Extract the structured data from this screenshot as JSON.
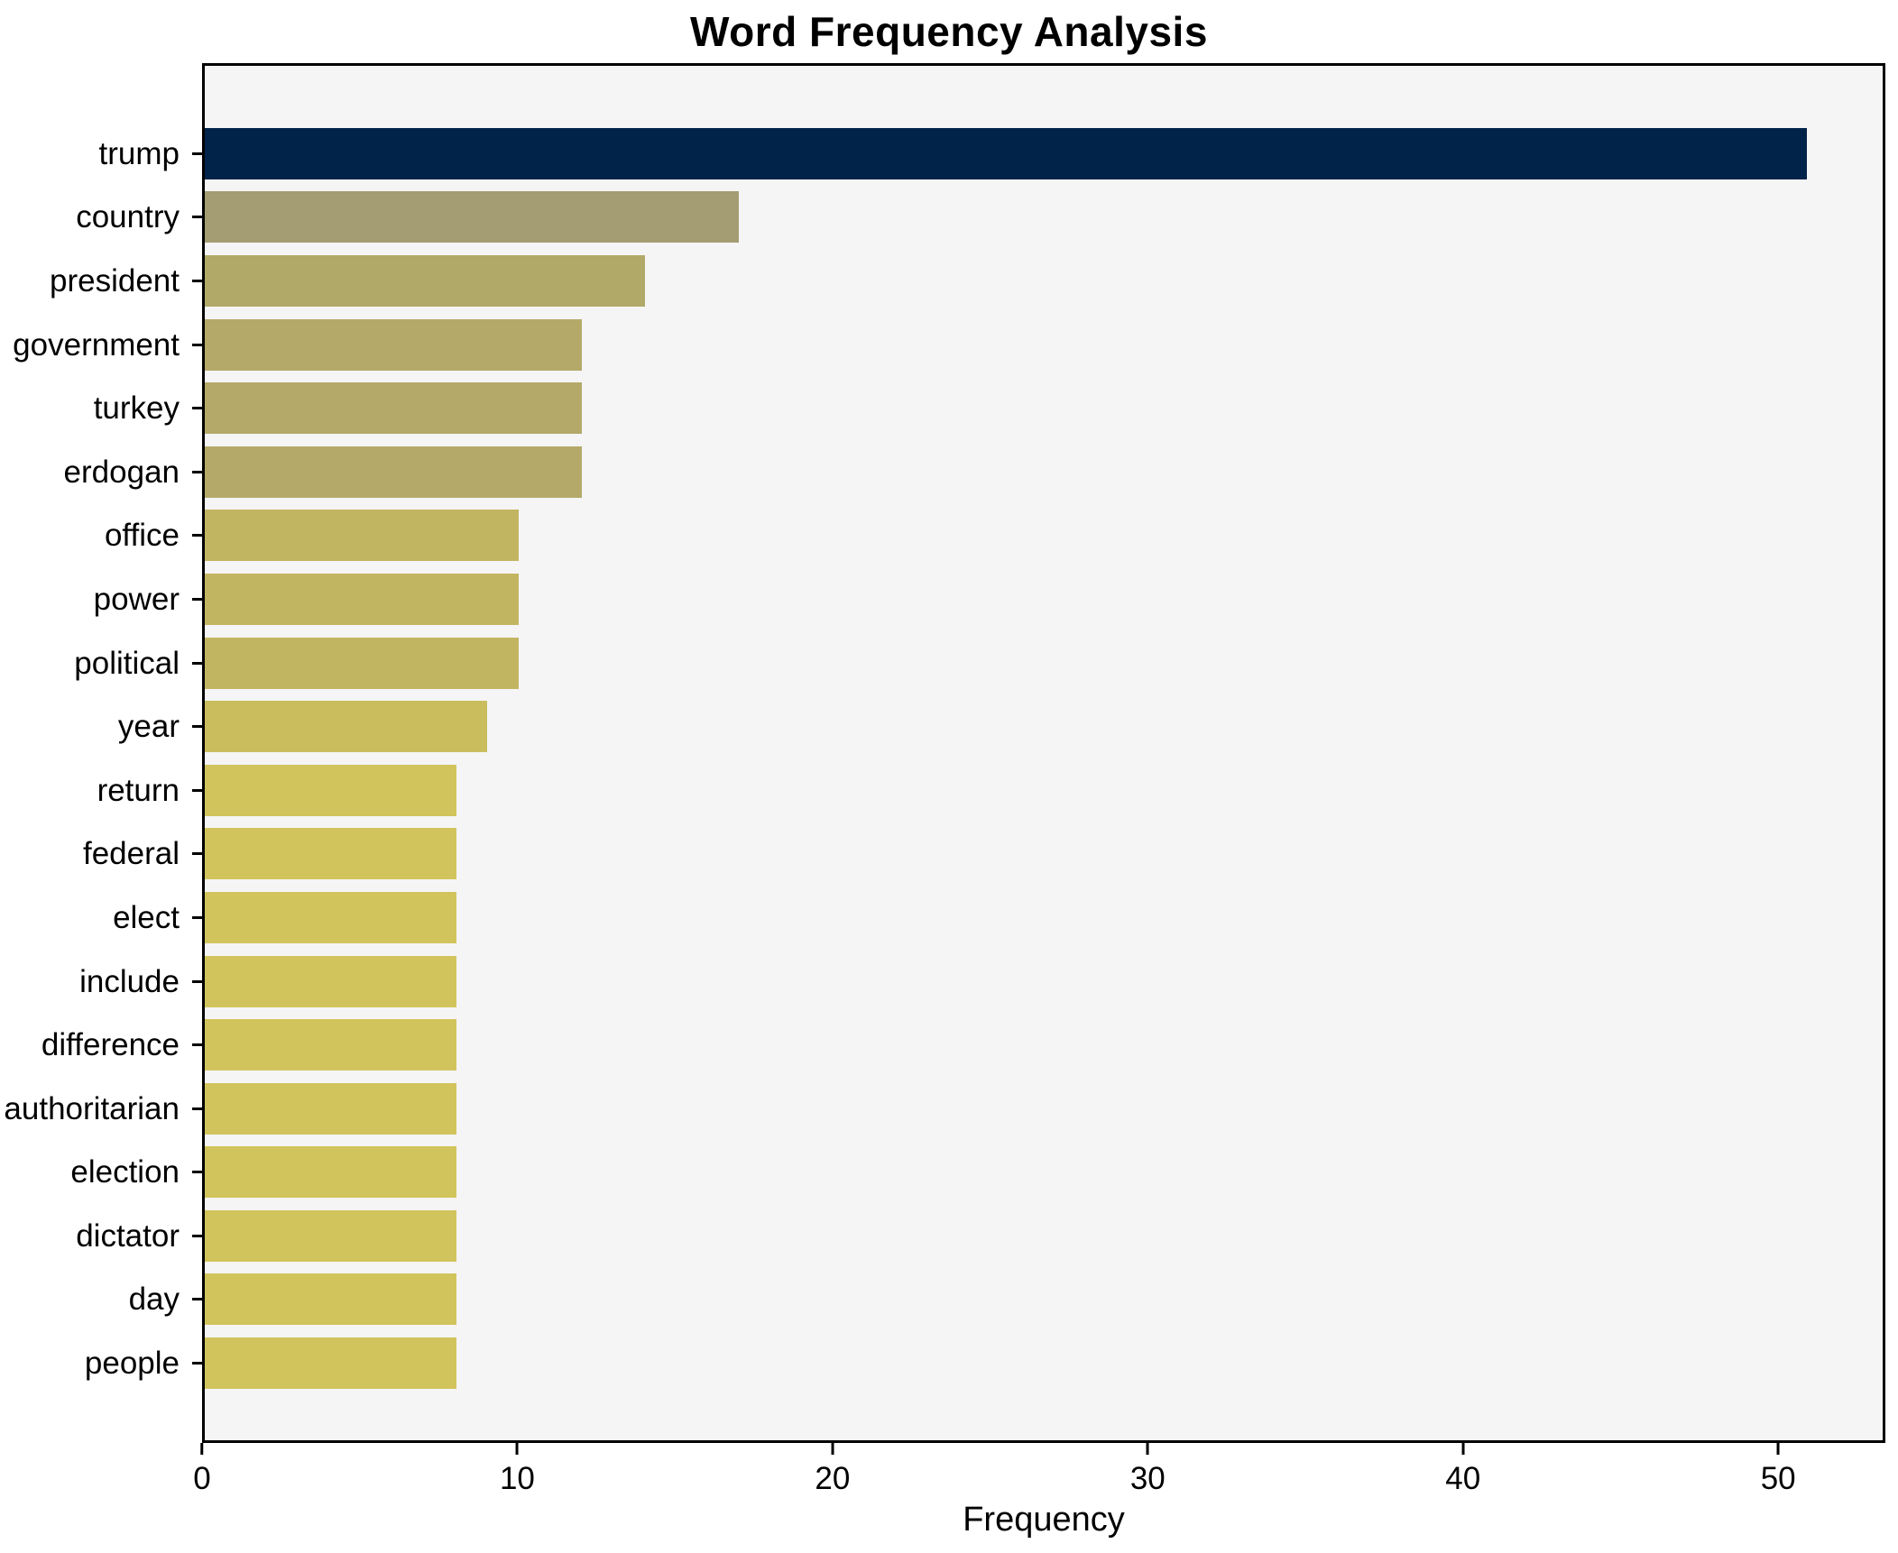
{
  "title": "Word Frequency Analysis",
  "colors": {
    "figure_background": "#ffffff",
    "plot_background": "#f5f5f6",
    "spine": "#000000",
    "max_bar": "#022349",
    "base_bar": "#d1c45c"
  },
  "chart_data": {
    "type": "bar",
    "orientation": "horizontal",
    "title": "Word Frequency Analysis",
    "xlabel": "Frequency",
    "ylabel": "",
    "grid": false,
    "legend": false,
    "xlim": [
      0,
      53.4
    ],
    "xticks": [
      0,
      10,
      20,
      30,
      40,
      50
    ],
    "categories": [
      "trump",
      "country",
      "president",
      "government",
      "turkey",
      "erdogan",
      "office",
      "power",
      "political",
      "year",
      "return",
      "federal",
      "elect",
      "include",
      "difference",
      "authoritarian",
      "election",
      "dictator",
      "day",
      "people"
    ],
    "values": [
      51,
      17,
      14,
      12,
      12,
      12,
      10,
      10,
      10,
      9,
      8,
      8,
      8,
      8,
      8,
      8,
      8,
      8,
      8,
      8
    ],
    "bar_colors": [
      "#022349",
      "#a49c72",
      "#b1a967",
      "#b4a968",
      "#b4a968",
      "#b4a968",
      "#c2b561",
      "#c2b561",
      "#c2b561",
      "#cabd5e",
      "#d1c45c",
      "#d1c45c",
      "#d1c45c",
      "#d1c45c",
      "#d1c45c",
      "#d1c45c",
      "#d1c45c",
      "#d1c45c",
      "#d1c45c",
      "#d1c45c"
    ]
  }
}
